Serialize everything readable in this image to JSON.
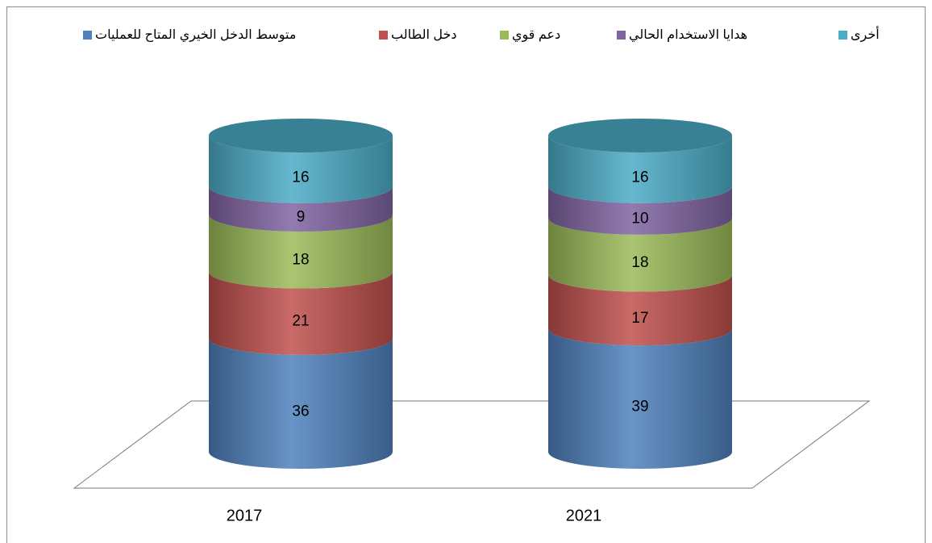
{
  "chart_data": {
    "type": "stacked-cylinder",
    "categories": [
      "2017",
      "2021"
    ],
    "series": [
      {
        "name": "متوسط الدخل الخيري المتاح للعمليات",
        "color": "#4f81bd",
        "values": [
          36,
          39
        ]
      },
      {
        "name": "دخل الطالب",
        "color": "#c0504d",
        "values": [
          21,
          17
        ]
      },
      {
        "name": "دعم قوي",
        "color": "#9bbb59",
        "values": [
          18,
          18
        ]
      },
      {
        "name": "هدايا الاستخدام الحالي",
        "color": "#8064a2",
        "values": [
          9,
          10
        ]
      },
      {
        "name": "أخرى",
        "color": "#4bacc6",
        "values": [
          16,
          16
        ]
      }
    ],
    "legend": "top"
  }
}
